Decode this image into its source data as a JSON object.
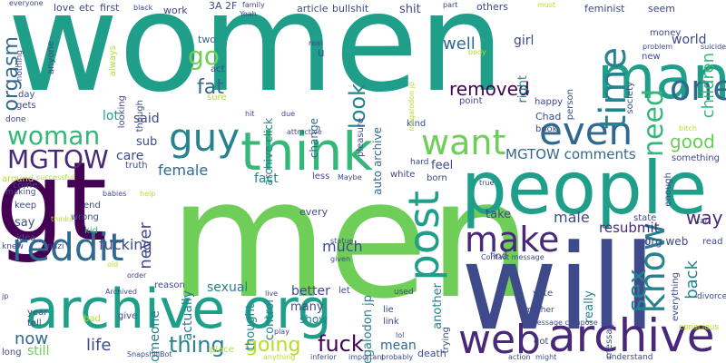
{
  "palette": [
    "#440154",
    "#482878",
    "#3e4a89",
    "#31688e",
    "#26828e",
    "#1f9e89",
    "#35b779",
    "#6ece58",
    "#b5de2b",
    "#fde725"
  ],
  "words": [
    {
      "text": "women",
      "color": "#1f9e89"
    },
    {
      "text": "men",
      "color": "#6ece58"
    },
    {
      "text": "gt",
      "color": "#440154"
    },
    {
      "text": "will",
      "color": "#3e4a89"
    },
    {
      "text": "people",
      "color": "#1f9e89"
    },
    {
      "text": "archive org",
      "color": "#1f9e89"
    },
    {
      "text": "think",
      "color": "#35b779"
    },
    {
      "text": "man",
      "color": "#1f9e89"
    },
    {
      "text": "archive",
      "color": "#482878"
    },
    {
      "text": "web",
      "color": "#482878"
    },
    {
      "text": "reddit",
      "color": "#31688e"
    },
    {
      "text": "guy",
      "color": "#26828e"
    },
    {
      "text": "woman",
      "color": "#35b779"
    },
    {
      "text": "post",
      "color": "#1f9e89"
    },
    {
      "text": "even",
      "color": "#31688e"
    },
    {
      "text": "want",
      "color": "#6ece58"
    },
    {
      "text": "make",
      "color": "#482878"
    },
    {
      "text": "time",
      "color": "#26828e"
    },
    {
      "text": "know",
      "color": "#26828e"
    },
    {
      "text": "sex",
      "color": "#26828e"
    },
    {
      "text": "one",
      "color": "#31688e"
    },
    {
      "text": "need",
      "color": "#35b779"
    },
    {
      "text": "MGTOW",
      "color": "#482878"
    },
    {
      "text": "fuck",
      "color": "#440154"
    },
    {
      "text": "thing",
      "color": "#26828e"
    },
    {
      "text": "going",
      "color": "#b5de2b"
    },
    {
      "text": "orgasm",
      "color": "#31688e"
    },
    {
      "text": "go",
      "color": "#6ece58"
    },
    {
      "text": "fat",
      "color": "#31688e"
    },
    {
      "text": "look",
      "color": "#26828e"
    },
    {
      "text": "removed",
      "color": "#440154"
    },
    {
      "text": "well",
      "color": "#31688e"
    },
    {
      "text": "good",
      "color": "#6ece58"
    },
    {
      "text": "way",
      "color": "#482878"
    },
    {
      "text": "life",
      "color": "#3e4a89"
    },
    {
      "text": "now",
      "color": "#31688e"
    },
    {
      "text": "children",
      "color": "#35b779"
    },
    {
      "text": "back",
      "color": "#26828e"
    },
    {
      "text": "female",
      "color": "#31688e"
    },
    {
      "text": "male",
      "color": "#3e4a89"
    },
    {
      "text": "MGTOW comments",
      "color": "#31688e"
    },
    {
      "text": "resubmit",
      "color": "#482878"
    },
    {
      "text": "never",
      "color": "#3e4a89"
    },
    {
      "text": "fucking",
      "color": "#3e4a89"
    },
    {
      "text": "much",
      "color": "#3e4a89"
    },
    {
      "text": "actually",
      "color": "#26828e"
    },
    {
      "text": "someone",
      "color": "#26828e"
    },
    {
      "text": "megalodon jp",
      "color": "#26828e"
    },
    {
      "text": "another",
      "color": "#26828e"
    },
    {
      "text": "mean",
      "color": "#31688e"
    },
    {
      "text": "sexual",
      "color": "#26828e"
    },
    {
      "text": "better",
      "color": "#3e4a89"
    },
    {
      "text": "show",
      "color": "#26828e"
    },
    {
      "text": "still",
      "color": "#6ece58"
    },
    {
      "text": "lot",
      "color": "#1f9e89"
    },
    {
      "text": "said",
      "color": "#3e4a89"
    },
    {
      "text": "sub",
      "color": "#3e4a89"
    },
    {
      "text": "say",
      "color": "#3e4a89"
    },
    {
      "text": "take",
      "color": "#3e4a89"
    },
    {
      "text": "feel",
      "color": "#3e4a89"
    },
    {
      "text": "fact",
      "color": "#26828e"
    },
    {
      "text": "care",
      "color": "#3e4a89"
    },
    {
      "text": "many",
      "color": "#3e4a89"
    },
    {
      "text": "world",
      "color": "#3e4a89"
    },
    {
      "text": "girl",
      "color": "#3e4a89"
    },
    {
      "text": "right",
      "color": "#26828e"
    },
    {
      "text": "shit",
      "color": "#3e4a89"
    },
    {
      "text": "change",
      "color": "#31688e"
    },
    {
      "text": "auto archive",
      "color": "#31688e"
    },
    {
      "text": "thought",
      "color": "#26828e"
    },
    {
      "text": "control",
      "color": "#26828e"
    },
    {
      "text": "really",
      "color": "#26828e"
    },
    {
      "text": "archive click",
      "color": "#26828e"
    },
    {
      "text": "org web",
      "color": "#3e4a89"
    },
    {
      "text": "every",
      "color": "#3e4a89"
    },
    {
      "text": "first",
      "color": "#3e4a89"
    },
    {
      "text": "two",
      "color": "#31688e"
    },
    {
      "text": "u",
      "color": "#3e4a89"
    },
    {
      "text": "work",
      "color": "#3e4a89"
    },
    {
      "text": "article",
      "color": "#3e4a89"
    },
    {
      "text": "bullshit",
      "color": "#3e4a89"
    },
    {
      "text": "3A 2F",
      "color": "#3e4a89"
    },
    {
      "text": "Chad",
      "color": "#3e4a89"
    },
    {
      "text": "new",
      "color": "#3e4a89"
    },
    {
      "text": "happy",
      "color": "#3e4a89"
    },
    {
      "text": "book",
      "color": "#3e4a89"
    },
    {
      "text": "feminist",
      "color": "#3e4a89"
    },
    {
      "text": "seem",
      "color": "#3e4a89"
    },
    {
      "text": "money",
      "color": "#3e4a89"
    },
    {
      "text": "love",
      "color": "#3e4a89"
    },
    {
      "text": "etc",
      "color": "#3e4a89"
    },
    {
      "text": "always",
      "color": "#b5de2b"
    },
    {
      "text": "anyone",
      "color": "#3e4a89"
    },
    {
      "text": "day",
      "color": "#3e4a89"
    },
    {
      "text": "gets",
      "color": "#3e4a89"
    },
    {
      "text": "looking",
      "color": "#3e4a89"
    },
    {
      "text": "act",
      "color": "#3e4a89"
    },
    {
      "text": "kind",
      "color": "#3e4a89"
    },
    {
      "text": "point",
      "color": "#3e4a89"
    },
    {
      "text": "white",
      "color": "#3e4a89"
    },
    {
      "text": "born",
      "color": "#3e4a89"
    },
    {
      "text": "less",
      "color": "#3e4a89"
    },
    {
      "text": "truth",
      "color": "#3e4a89"
    },
    {
      "text": "end",
      "color": "#3e4a89"
    },
    {
      "text": "wrong",
      "color": "#3e4a89"
    },
    {
      "text": "kid",
      "color": "#35b779"
    },
    {
      "text": "come",
      "color": "#3e4a89"
    },
    {
      "text": "keep",
      "color": "#3e4a89"
    },
    {
      "text": "around",
      "color": "#b5de2b"
    },
    {
      "text": "idea",
      "color": "#3e4a89"
    },
    {
      "text": "year",
      "color": "#3e4a89"
    },
    {
      "text": "tell",
      "color": "#3e4a89"
    },
    {
      "text": "long",
      "color": "#3e4a89"
    },
    {
      "text": "give",
      "color": "#3e4a89"
    },
    {
      "text": "bad",
      "color": "#b5de2b"
    },
    {
      "text": "place",
      "color": "#b5de2b"
    },
    {
      "text": "lie",
      "color": "#3e4a89"
    },
    {
      "text": "link",
      "color": "#3e4a89"
    },
    {
      "text": "find",
      "color": "#3e4a89"
    },
    {
      "text": "trying",
      "color": "#3e4a89"
    },
    {
      "text": "self",
      "color": "#3e4a89"
    },
    {
      "text": "read",
      "color": "#3e4a89"
    },
    {
      "text": "vote",
      "color": "#3e4a89"
    },
    {
      "text": "got",
      "color": "#3e4a89"
    },
    {
      "text": "everything",
      "color": "#3e4a89"
    },
    {
      "text": "something",
      "color": "#3e4a89"
    },
    {
      "text": "enough",
      "color": "#3e4a89"
    },
    {
      "text": "pleasure",
      "color": "#3e4a89"
    },
    {
      "text": "person",
      "color": "#3e4a89"
    },
    {
      "text": "message",
      "color": "#3e4a89"
    },
    {
      "text": "others",
      "color": "#3e4a89"
    },
    {
      "text": "society",
      "color": "#3e4a89"
    },
    {
      "text": "state",
      "color": "#3e4a89"
    },
    {
      "text": "reason",
      "color": "#3e4a89"
    },
    {
      "text": "death",
      "color": "#3e4a89"
    },
    {
      "text": "sure",
      "color": "#b5de2b"
    },
    {
      "text": "though",
      "color": "#3e4a89"
    },
    {
      "text": "hard",
      "color": "#3e4a89"
    },
    {
      "text": "let",
      "color": "#3e4a89"
    },
    {
      "text": "used",
      "color": "#3e4a89"
    },
    {
      "text": "mother",
      "color": "#3e4a89"
    },
    {
      "text": "understand",
      "color": "#3e4a89"
    },
    {
      "text": "conscious",
      "color": "#b5de2b"
    },
    {
      "text": "divorce",
      "color": "#3e4a89"
    },
    {
      "text": "far",
      "color": "#3e4a89"
    },
    {
      "text": "knew",
      "color": "#3e4a89"
    },
    {
      "text": "nazi",
      "color": "#3e4a89"
    },
    {
      "text": "making",
      "color": "#3e4a89"
    },
    {
      "text": "done",
      "color": "#3e4a89"
    },
    {
      "text": "nothing",
      "color": "#3e4a89"
    },
    {
      "text": "everyone",
      "color": "#3e4a89"
    },
    {
      "text": "black",
      "color": "#3e4a89"
    },
    {
      "text": "family",
      "color": "#3e4a89"
    },
    {
      "text": "Yeah",
      "color": "#3e4a89"
    },
    {
      "text": "real",
      "color": "#3e4a89"
    },
    {
      "text": "part",
      "color": "#3e4a89"
    },
    {
      "text": "must",
      "color": "#b5de2b"
    },
    {
      "text": "problem",
      "color": "#3e4a89"
    },
    {
      "text": "suicide",
      "color": "#3e4a89"
    },
    {
      "text": "body",
      "color": "#b5de2b"
    },
    {
      "text": "hit",
      "color": "#3e4a89"
    },
    {
      "text": "due",
      "color": "#3e4a89"
    },
    {
      "text": "attractive",
      "color": "#3e4a89"
    },
    {
      "text": "Maybe",
      "color": "#3e4a89"
    },
    {
      "text": "babies",
      "color": "#3e4a89"
    },
    {
      "text": "help",
      "color": "#b5de2b"
    },
    {
      "text": "bitch",
      "color": "#b5de2b"
    },
    {
      "text": "successful",
      "color": "#b5de2b"
    },
    {
      "text": "statue",
      "color": "#3e4a89"
    },
    {
      "text": "given",
      "color": "#3e4a89"
    },
    {
      "text": "Contact message",
      "color": "#3e4a89"
    },
    {
      "text": "message compose",
      "color": "#3e4a89"
    },
    {
      "text": "SnapshillBot",
      "color": "#3e4a89"
    },
    {
      "text": "Archived",
      "color": "#3e4a89"
    },
    {
      "text": "anything",
      "color": "#b5de2b"
    },
    {
      "text": "inferior",
      "color": "#3e4a89"
    },
    {
      "text": "important",
      "color": "#3e4a89"
    },
    {
      "text": "probably",
      "color": "#3e4a89"
    },
    {
      "text": "action",
      "color": "#3e4a89"
    },
    {
      "text": "might",
      "color": "#3e4a89"
    },
    {
      "text": "old",
      "color": "#b5de2b"
    },
    {
      "text": "live",
      "color": "#3e4a89"
    },
    {
      "text": "order",
      "color": "#3e4a89"
    },
    {
      "text": "play",
      "color": "#3e4a89"
    },
    {
      "text": "lol",
      "color": "#3e4a89"
    },
    {
      "text": "jp",
      "color": "#3e4a89"
    },
    {
      "text": "true",
      "color": "#3e4a89"
    },
    {
      "text": "thinks",
      "color": "#b5de2b"
    },
    {
      "text": "megalodon jp",
      "color": "#b5de2b"
    }
  ]
}
